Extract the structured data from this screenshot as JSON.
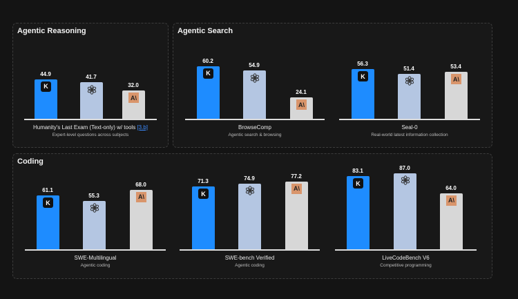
{
  "colors": {
    "kimi": "#1e8cff",
    "openai": "#b4c6e2",
    "anthropic": "#d7d7d7",
    "anthropic_logo": "#d9956b"
  },
  "panels": [
    {
      "title": "Agentic Reasoning"
    },
    {
      "title": "Agentic Search"
    },
    {
      "title": "Coding"
    }
  ],
  "chart_data": [
    {
      "type": "bar",
      "panel": "Agentic Reasoning",
      "title": "Humanity's Last Exam (Text-only) w/ tools",
      "ref": "[3.b]",
      "subtitle": "Expert-level questions across subjects",
      "categories": [
        "kimi-icon",
        "openai-icon",
        "anthropic-icon"
      ],
      "values": [
        44.9,
        41.7,
        32.0
      ]
    },
    {
      "type": "bar",
      "panel": "Agentic Search",
      "title": "BrowseComp",
      "ref": "",
      "subtitle": "Agentic search & browsing",
      "categories": [
        "kimi-icon",
        "openai-icon",
        "anthropic-icon"
      ],
      "values": [
        60.2,
        54.9,
        24.1
      ]
    },
    {
      "type": "bar",
      "panel": "Agentic Search",
      "title": "Seal-0",
      "ref": "",
      "subtitle": "Real-world latest information collection",
      "categories": [
        "kimi-icon",
        "openai-icon",
        "anthropic-icon"
      ],
      "values": [
        56.3,
        51.4,
        53.4
      ]
    },
    {
      "type": "bar",
      "panel": "Coding",
      "title": "SWE-Multilingual",
      "ref": "",
      "subtitle": "Agentic coding",
      "categories": [
        "kimi-icon",
        "openai-icon",
        "anthropic-icon"
      ],
      "values": [
        61.1,
        55.3,
        68.0
      ]
    },
    {
      "type": "bar",
      "panel": "Coding",
      "title": "SWE-bench Verified",
      "ref": "",
      "subtitle": "Agentic coding",
      "categories": [
        "kimi-icon",
        "openai-icon",
        "anthropic-icon"
      ],
      "values": [
        71.3,
        74.9,
        77.2
      ]
    },
    {
      "type": "bar",
      "panel": "Coding",
      "title": "LiveCodeBench V6",
      "ref": "",
      "subtitle": "Competitive programming",
      "categories": [
        "kimi-icon",
        "openai-icon",
        "anthropic-icon"
      ],
      "values": [
        83.1,
        87.0,
        64.0
      ]
    }
  ]
}
